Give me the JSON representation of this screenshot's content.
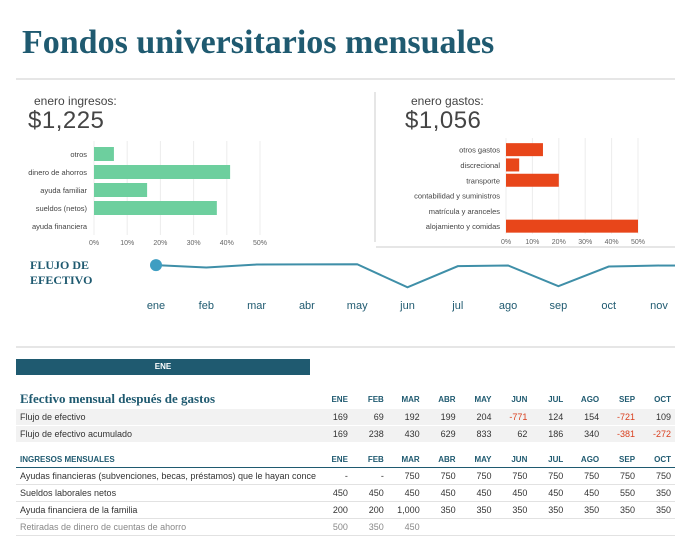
{
  "title": "Fondos universitarios mensuales",
  "income": {
    "label": "enero ingresos:",
    "total": "$1,225",
    "categories": [
      "otros",
      "dinero de ahorros",
      "ayuda familiar",
      "sueldos (netos)",
      "ayuda financiera"
    ],
    "values": [
      0.06,
      0.41,
      0.16,
      0.37,
      0.0
    ],
    "axis_ticks": [
      "0%",
      "10%",
      "20%",
      "30%",
      "40%",
      "50%"
    ],
    "color": "#6dcf9e"
  },
  "expenses": {
    "label": "enero gastos:",
    "total": "$1,056",
    "categories": [
      "otros gastos",
      "discrecional",
      "transporte",
      "contabilidad y suministros",
      "matrícula y aranceles",
      "alojamiento y comidas"
    ],
    "values": [
      0.14,
      0.05,
      0.2,
      0.0,
      0.0,
      0.5
    ],
    "axis_ticks": [
      "0%",
      "10%",
      "20%",
      "30%",
      "40%",
      "50%"
    ],
    "color": "#e8461a"
  },
  "cashflow": {
    "title": "FLUJO DE EFECTIVO",
    "months": [
      "ene",
      "feb",
      "mar",
      "abr",
      "may",
      "jun",
      "jul",
      "ago",
      "sep",
      "oct",
      "nov"
    ],
    "values": [
      169,
      69,
      192,
      199,
      204,
      -771,
      124,
      154,
      -721,
      109,
      150
    ],
    "color": "#3f8fa8"
  },
  "tab_label": "ENE",
  "summary": {
    "heading": "Efectivo mensual después de gastos",
    "months": [
      "ENE",
      "FEB",
      "MAR",
      "ABR",
      "MAY",
      "JUN",
      "JUL",
      "AGO",
      "SEP",
      "OCT"
    ],
    "rows": [
      {
        "label": "Flujo de efectivo",
        "cells": [
          "169",
          "69",
          "192",
          "199",
          "204",
          "-771",
          "124",
          "154",
          "-721",
          "109"
        ]
      },
      {
        "label": "Flujo de efectivo acumulado",
        "cells": [
          "169",
          "238",
          "430",
          "629",
          "833",
          "62",
          "186",
          "340",
          "-381",
          "-272"
        ]
      }
    ]
  },
  "income_table": {
    "heading": "INGRESOS MENSUALES",
    "months": [
      "ENE",
      "FEB",
      "MAR",
      "ABR",
      "MAY",
      "JUN",
      "JUL",
      "AGO",
      "SEP",
      "OCT"
    ],
    "rows": [
      {
        "label": "Ayudas financieras (subvenciones, becas, préstamos) que le hayan concedido",
        "cells": [
          "-",
          "-",
          "750",
          "750",
          "750",
          "750",
          "750",
          "750",
          "750",
          "750"
        ]
      },
      {
        "label": "Sueldos laborales netos",
        "cells": [
          "450",
          "450",
          "450",
          "450",
          "450",
          "450",
          "450",
          "450",
          "550",
          "350"
        ]
      },
      {
        "label": "Ayuda financiera de la familia",
        "cells": [
          "200",
          "200",
          "1,000",
          "350",
          "350",
          "350",
          "350",
          "350",
          "350",
          "350"
        ]
      },
      {
        "label": "Retiradas de dinero de cuentas de ahorro",
        "cells": [
          "500",
          "350",
          "450",
          "",
          "",
          "",
          "",
          "",
          "",
          ""
        ]
      }
    ]
  }
}
